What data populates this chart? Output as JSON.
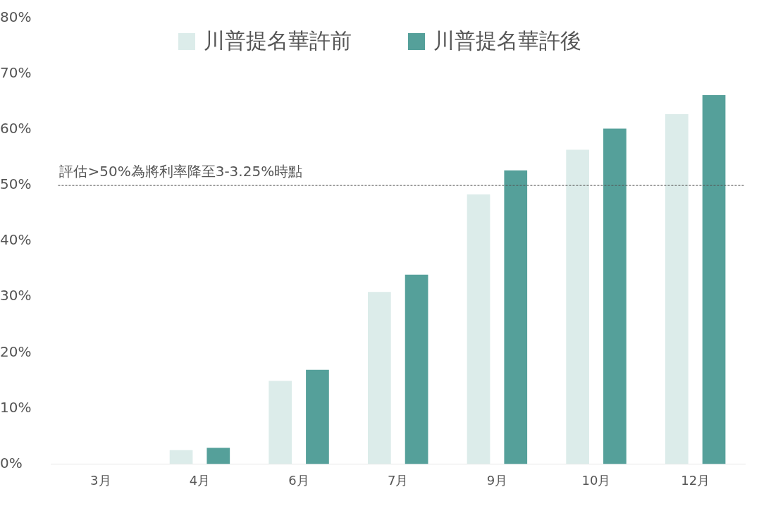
{
  "chart_data": {
    "type": "bar",
    "categories": [
      "3月",
      "4月",
      "6月",
      "7月",
      "9月",
      "10月",
      "12月"
    ],
    "series": [
      {
        "name": "川普提名華許前",
        "color": "#dcecea",
        "values": [
          0,
          2.5,
          14.9,
          30.9,
          48.4,
          56.4,
          62.8
        ]
      },
      {
        "name": "川普提名華許後",
        "color": "#55a09a",
        "values": [
          0,
          2.9,
          16.9,
          34.0,
          52.7,
          60.2,
          66.2
        ]
      }
    ],
    "ylim": [
      0,
      80
    ],
    "yticks": [
      {
        "value": 0,
        "label": "0%"
      },
      {
        "value": 10,
        "label": "10%"
      },
      {
        "value": 20,
        "label": "20%"
      },
      {
        "value": 30,
        "label": "30%"
      },
      {
        "value": 40,
        "label": "40%"
      },
      {
        "value": 50,
        "label": "50%"
      },
      {
        "value": 60,
        "label": "60%"
      },
      {
        "value": 70,
        "label": "70%"
      },
      {
        "value": 80,
        "label": "80%"
      }
    ],
    "grid": false,
    "legend": "top",
    "ref_lines": [
      {
        "axis": "y",
        "value": 50,
        "label": "評估>50%為將利率降至3-3.25%時點",
        "color": "#555555",
        "line_style": "dashed"
      }
    ]
  }
}
